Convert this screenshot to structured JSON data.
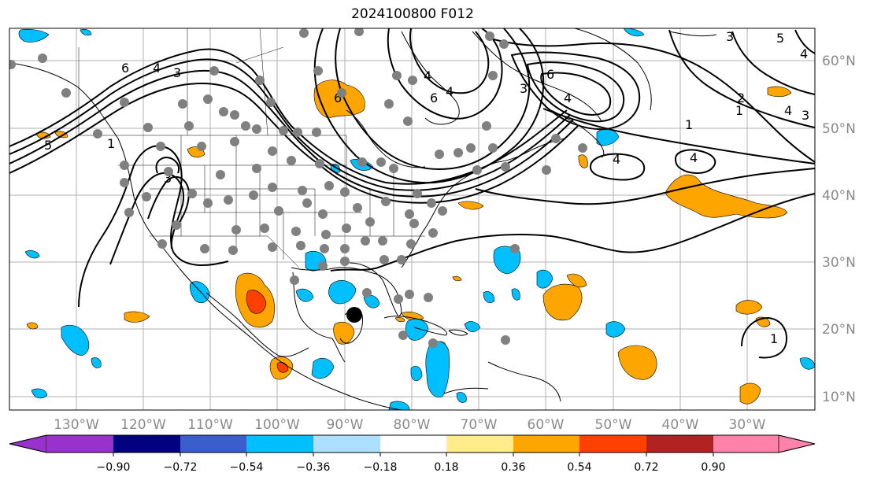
{
  "map": {
    "title": "2024100800 F012",
    "lon_labels": [
      "130°W",
      "120°W",
      "110°W",
      "100°W",
      "90°W",
      "80°W",
      "70°W",
      "60°W",
      "50°W",
      "40°W",
      "30°W"
    ],
    "lat_labels": [
      "60°N",
      "50°N",
      "40°N",
      "30°N",
      "20°N",
      "10°N"
    ],
    "contour_labels": [
      "6",
      "4",
      "3",
      "5",
      "1",
      "3",
      "6",
      "6",
      "4",
      "4",
      "3",
      "5",
      "4",
      "3",
      "6",
      "1",
      "1",
      "2",
      "4",
      "4",
      "4",
      "4",
      "3",
      "1"
    ]
  },
  "colorbar": {
    "ticks": [
      "−0.90",
      "−0.72",
      "−0.54",
      "−0.36",
      "−0.18",
      "0.18",
      "0.36",
      "0.54",
      "0.72",
      "0.90"
    ],
    "colors": [
      "#9932CC",
      "#000080",
      "#3A5FCD",
      "#00BFFF",
      "#ADDFFF",
      "#FFFFFF",
      "#FFEC8B",
      "#FFA500",
      "#FF4000",
      "#B22222",
      "#FF82AB"
    ]
  }
}
